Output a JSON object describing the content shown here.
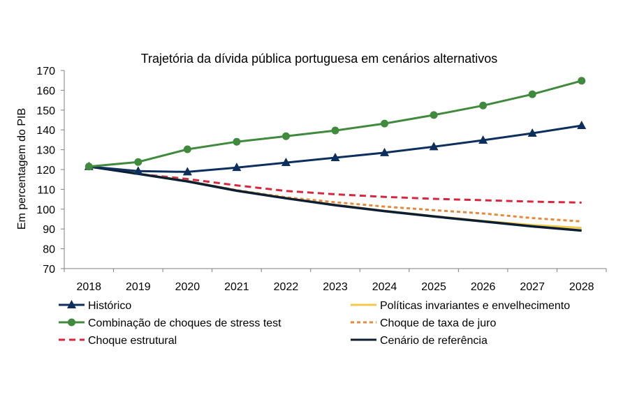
{
  "chart_data": {
    "type": "line",
    "title": "Trajetória da dívida pública portuguesa em cenários alternativos",
    "xlabel": "",
    "ylabel": "Em percentagem do PIB",
    "ylim": [
      70,
      170
    ],
    "yticks": [
      70,
      80,
      90,
      100,
      110,
      120,
      130,
      140,
      150,
      160,
      170
    ],
    "categories": [
      "2018",
      "2019",
      "2020",
      "2021",
      "2022",
      "2023",
      "2024",
      "2025",
      "2026",
      "2027",
      "2028"
    ],
    "legend_position": "bottom",
    "series": [
      {
        "name": "Histórico",
        "color": "#0d2f5e",
        "style": "solid",
        "marker": "triangle",
        "values": [
          121.5,
          119.2,
          118.8,
          121.0,
          123.5,
          126.0,
          128.5,
          131.5,
          134.8,
          138.3,
          142.2
        ]
      },
      {
        "name": "Combinação de choques de stress test",
        "color": "#3f8a3c",
        "style": "solid",
        "marker": "circle",
        "values": [
          121.5,
          123.8,
          130.2,
          134.0,
          136.8,
          139.7,
          143.2,
          147.5,
          152.3,
          158.0,
          164.8
        ]
      },
      {
        "name": "Choque estrutural",
        "color": "#d7263d",
        "style": "dashed",
        "marker": "none",
        "values": [
          121.5,
          117.8,
          115.2,
          112.0,
          109.2,
          107.5,
          106.2,
          105.2,
          104.5,
          103.8,
          103.3
        ]
      },
      {
        "name": "Políticas invariantes e envelhecimento",
        "color": "#f2c84b",
        "style": "solid",
        "marker": "none",
        "values": [
          121.5,
          118.0,
          114.2,
          109.5,
          105.6,
          102.2,
          99.2,
          96.5,
          94.0,
          92.0,
          90.5
        ]
      },
      {
        "name": "Choque de taxa de juro",
        "color": "#e8883a",
        "style": "dotted",
        "marker": "none",
        "values": [
          121.5,
          118.0,
          114.2,
          109.6,
          106.0,
          103.5,
          101.3,
          99.5,
          97.8,
          95.5,
          93.8
        ]
      },
      {
        "name": "Cenário de referência",
        "color": "#0b1e33",
        "style": "solid",
        "marker": "none",
        "values": [
          121.5,
          117.8,
          114.0,
          109.3,
          105.5,
          102.0,
          99.0,
          96.3,
          93.8,
          91.3,
          89.2
        ]
      }
    ],
    "legend_order": [
      0,
      3,
      1,
      4,
      2,
      5
    ]
  }
}
